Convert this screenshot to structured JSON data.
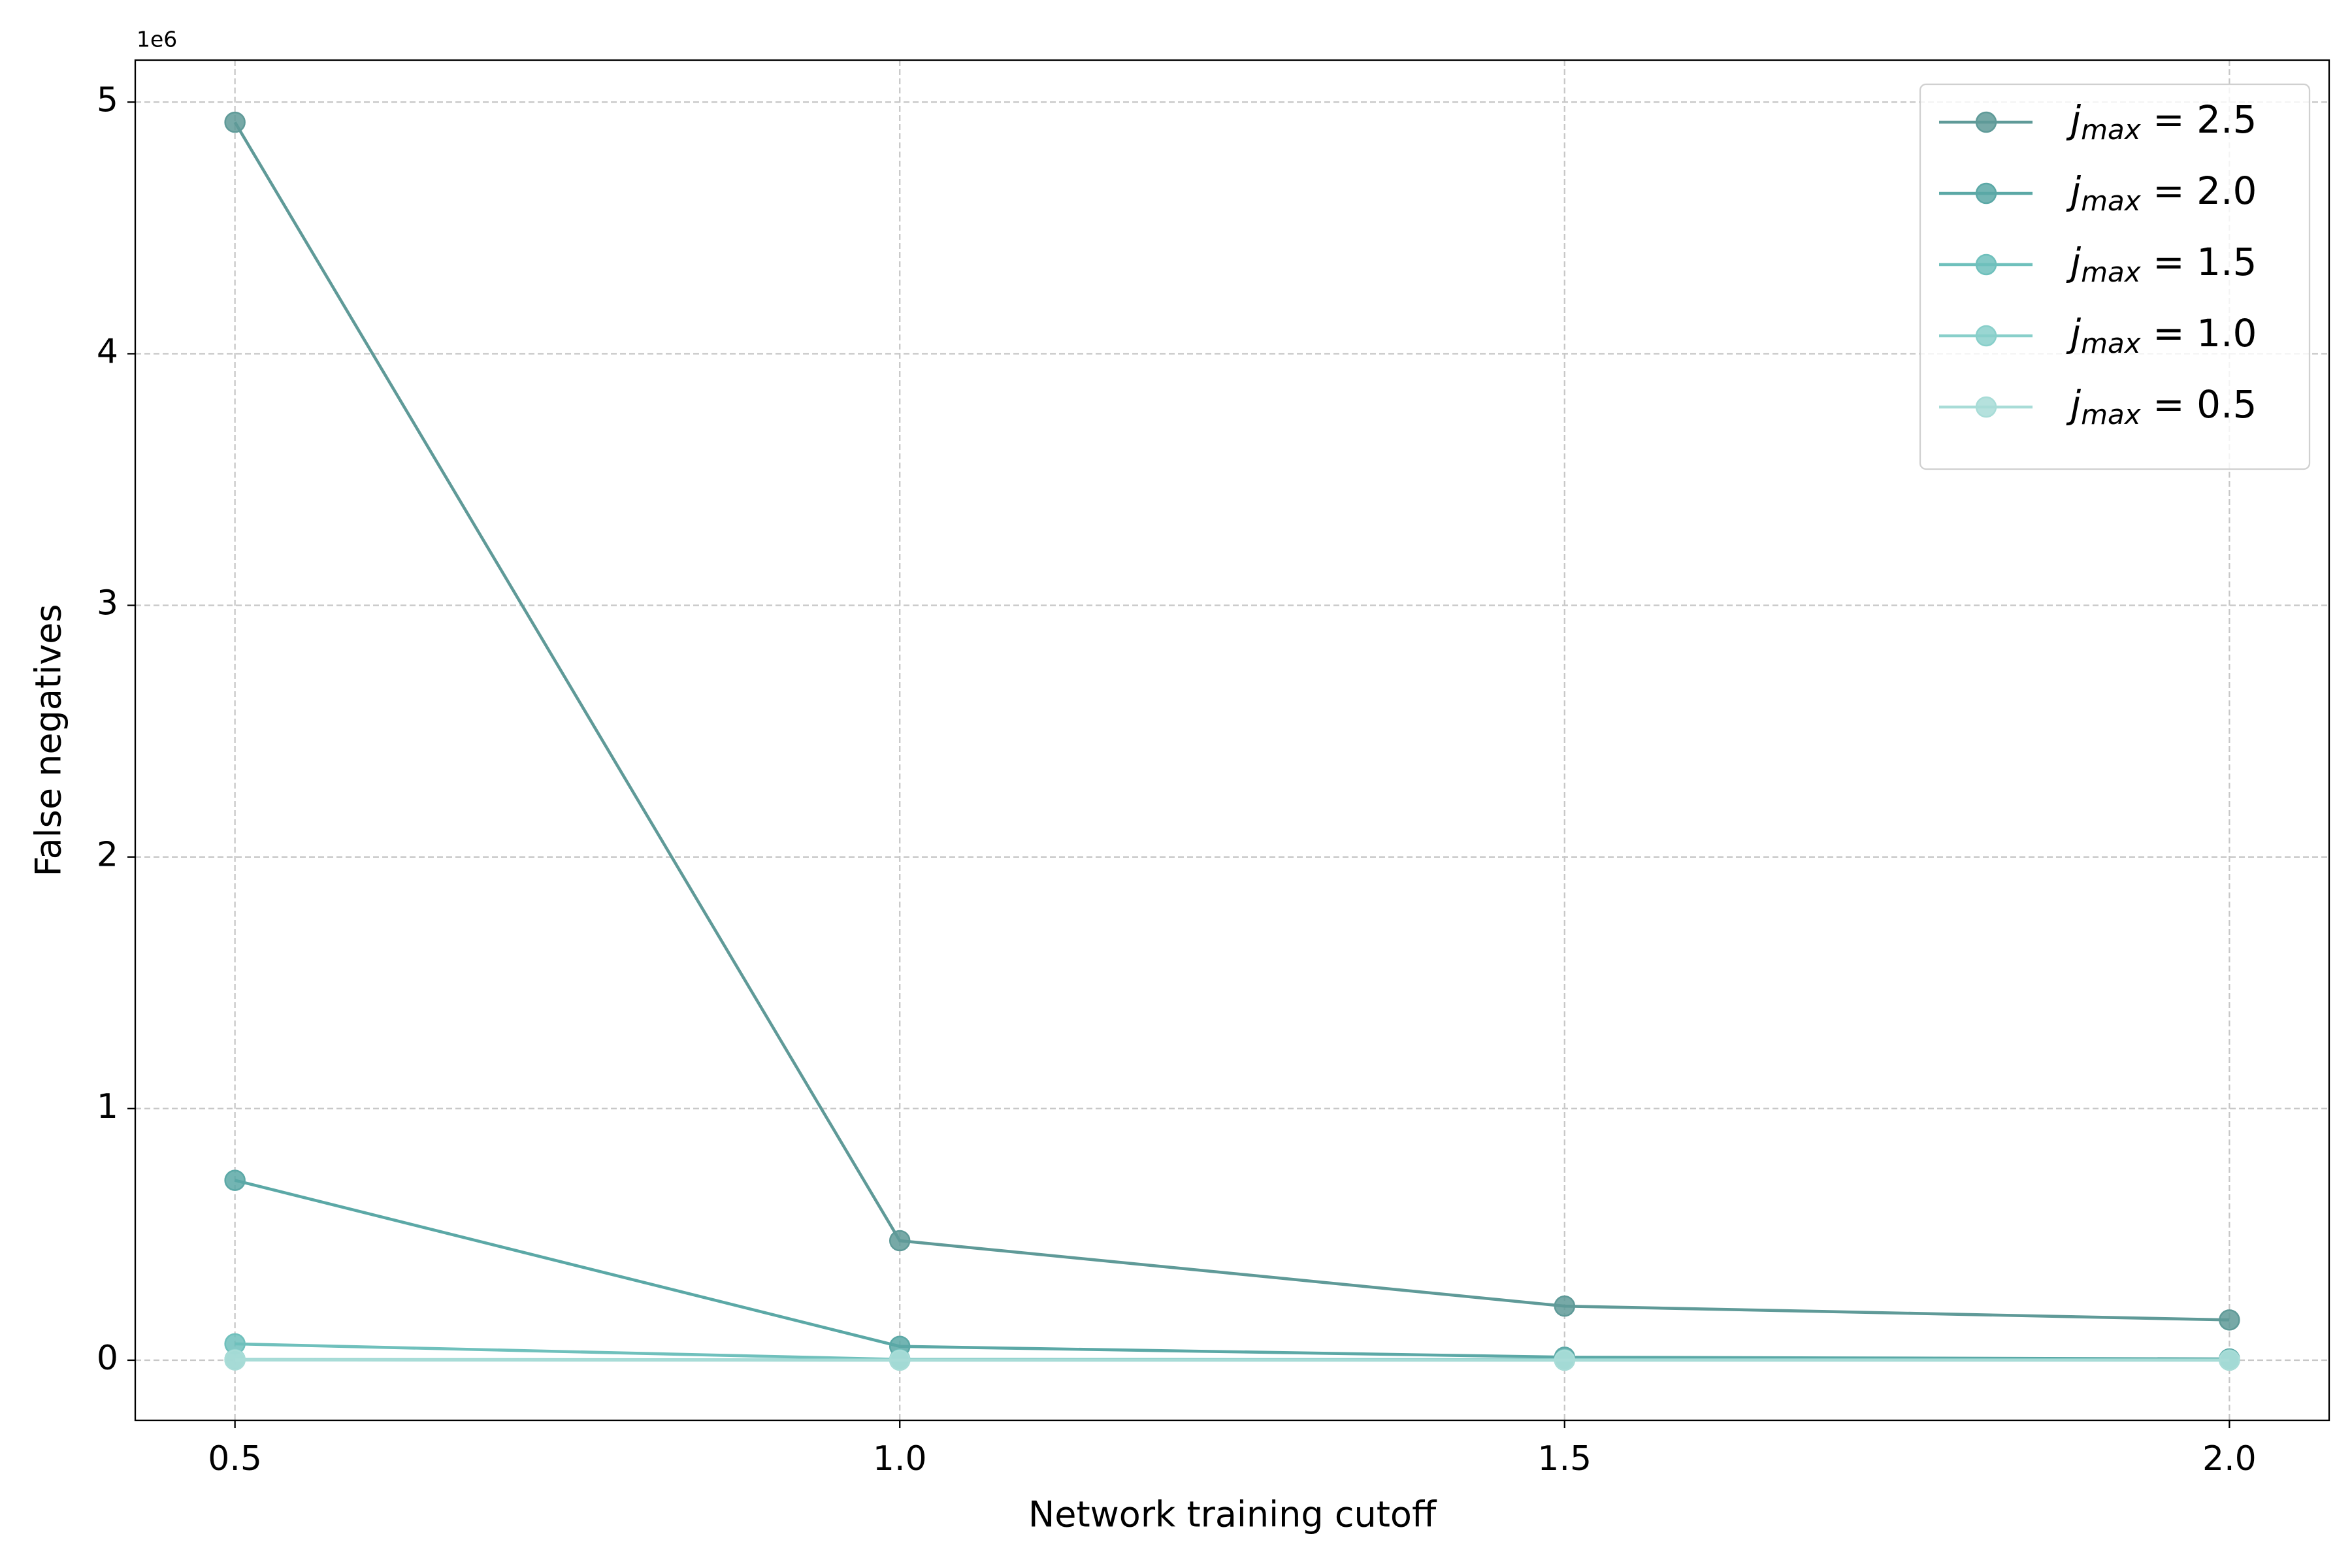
{
  "chart_data": {
    "type": "line",
    "xlabel": "Network training cutoff",
    "ylabel": "False negatives",
    "y_offset_label": "1e6",
    "x": [
      0.5,
      1.0,
      1.5,
      2.0
    ],
    "xlim": [
      0.425,
      2.075
    ],
    "xticks": [
      0.5,
      {
        "value": 1,
        "label": "1.0"
      },
      1.5,
      {
        "value": 2,
        "label": "2.0"
      }
    ],
    "ylim": [
      -0.239,
      5.167
    ],
    "yticks": [
      0,
      1,
      2,
      3,
      4,
      5
    ],
    "grid": true,
    "legend": "upper right",
    "series": [
      {
        "name": "j_max = 2.5",
        "color": "#5f9a98",
        "values": [
          4.92,
          0.475,
          0.215,
          0.16
        ]
      },
      {
        "name": "j_max = 2.0",
        "color": "#5ba8a6",
        "values": [
          0.715,
          0.055,
          0.012,
          0.005
        ]
      },
      {
        "name": "j_max = 1.5",
        "color": "#6fc0bc",
        "values": [
          0.065,
          0.003,
          0.002,
          0.001
        ]
      },
      {
        "name": "j_max = 1.0",
        "color": "#88cfca",
        "values": [
          0.003,
          0.001,
          0.001,
          0.001
        ]
      },
      {
        "name": "j_max = 0.5",
        "color": "#a8dcd7",
        "values": [
          0.001,
          0,
          0,
          0
        ]
      }
    ]
  }
}
